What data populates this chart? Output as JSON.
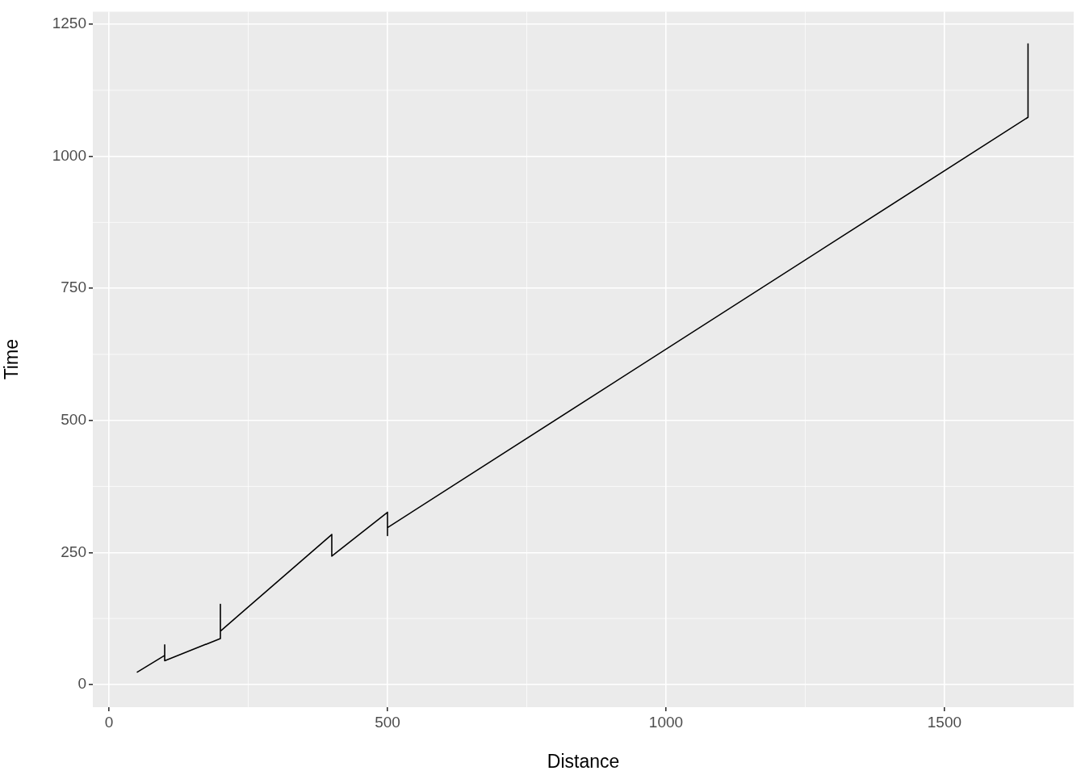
{
  "chart_data": {
    "type": "line",
    "xlabel": "Distance",
    "ylabel": "Time",
    "x": [
      50,
      100,
      100,
      100,
      200,
      200,
      200,
      400,
      400,
      500,
      500,
      500,
      1650,
      1650
    ],
    "series": [
      {
        "color": "#000000",
        "values": [
          23,
          55,
          75,
          45,
          87,
          152,
          101,
          284,
          243,
          326,
          282,
          297,
          1074,
          1214
        ]
      }
    ],
    "xlim": [
      -29,
      1732
    ],
    "xticks": [
      0,
      500,
      1000,
      1500
    ],
    "ylim": [
      -43,
      1274
    ],
    "yticks": [
      0,
      250,
      500,
      750,
      1000,
      1250
    ],
    "grid": true,
    "legend": false,
    "marker": "none",
    "line_style": "solid"
  }
}
